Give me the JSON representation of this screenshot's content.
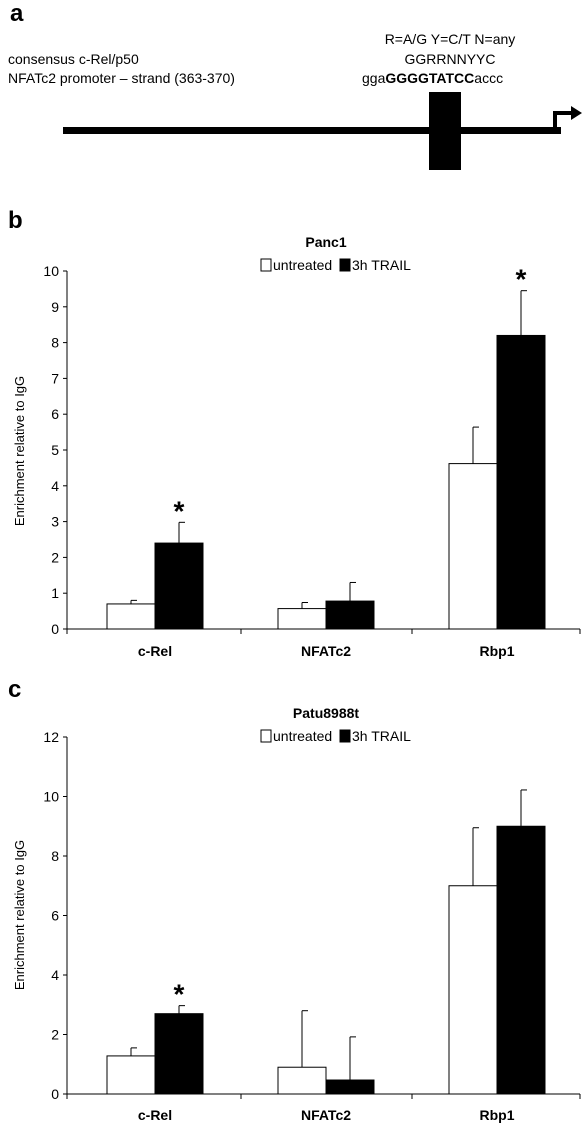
{
  "panel_a": {
    "letter": "a",
    "line1": "consensus c-Rel/p50",
    "line2": "NFATc2 promoter – strand (363-370)",
    "legend_codes": "R=A/G Y=C/T N=any",
    "consensus_seq": "GGRRNNYYC",
    "seq_prefix": "gga",
    "seq_core": "GGGGTATCC",
    "seq_suffix": "accc"
  },
  "panel_b": {
    "letter": "b"
  },
  "panel_c": {
    "letter": "c"
  },
  "chart_data": [
    {
      "type": "bar",
      "title": "Panc1",
      "xlabel": "",
      "ylabel": "Enrichment relative to IgG",
      "categories": [
        "c-Rel",
        "NFATc2",
        "Rbp1"
      ],
      "series": [
        {
          "name": "untreated",
          "color": "#ffffff",
          "values": [
            0.7,
            0.57,
            4.62
          ],
          "errors": [
            0.1,
            0.17,
            1.02
          ]
        },
        {
          "name": "3h TRAIL",
          "color": "#000000",
          "values": [
            2.4,
            0.78,
            8.2
          ],
          "errors": [
            0.58,
            0.52,
            1.25
          ]
        }
      ],
      "significance": [
        "*",
        "",
        "*"
      ],
      "ylim": [
        0,
        10
      ],
      "yticks": [
        0,
        1,
        2,
        3,
        4,
        5,
        6,
        7,
        8,
        9,
        10
      ],
      "legend": "top-center",
      "grid": false
    },
    {
      "type": "bar",
      "title": "Patu8988t",
      "xlabel": "",
      "ylabel": "Enrichment relative to IgG",
      "categories": [
        "c-Rel",
        "NFATc2",
        "Rbp1"
      ],
      "series": [
        {
          "name": "untreated",
          "color": "#ffffff",
          "values": [
            1.28,
            0.9,
            7.0
          ],
          "errors": [
            0.27,
            1.9,
            1.95
          ]
        },
        {
          "name": "3h TRAIL",
          "color": "#000000",
          "values": [
            2.7,
            0.47,
            9.0
          ],
          "errors": [
            0.27,
            1.45,
            1.22
          ]
        }
      ],
      "significance": [
        "*",
        "",
        ""
      ],
      "ylim": [
        0,
        12
      ],
      "yticks": [
        0,
        2,
        4,
        6,
        8,
        10,
        12
      ],
      "legend": "top-center",
      "grid": false
    }
  ]
}
